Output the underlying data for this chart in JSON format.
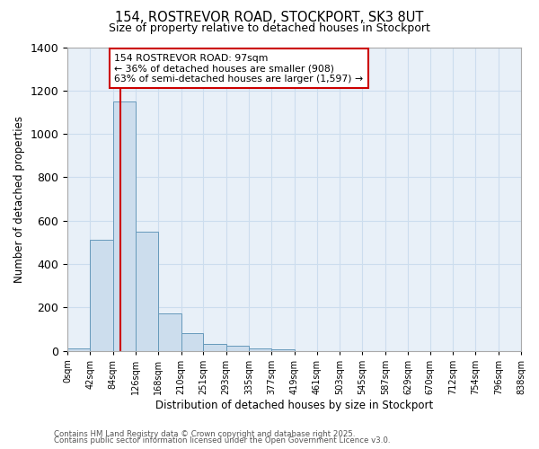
{
  "title_line1": "154, ROSTREVOR ROAD, STOCKPORT, SK3 8UT",
  "title_line2": "Size of property relative to detached houses in Stockport",
  "xlabel": "Distribution of detached houses by size in Stockport",
  "ylabel": "Number of detached properties",
  "bin_labels": [
    "0sqm",
    "42sqm",
    "84sqm",
    "126sqm",
    "168sqm",
    "210sqm",
    "251sqm",
    "293sqm",
    "335sqm",
    "377sqm",
    "419sqm",
    "461sqm",
    "503sqm",
    "545sqm",
    "587sqm",
    "629sqm",
    "670sqm",
    "712sqm",
    "754sqm",
    "796sqm",
    "838sqm"
  ],
  "bar_values": [
    10,
    510,
    1150,
    550,
    170,
    82,
    33,
    25,
    12,
    8,
    0,
    0,
    0,
    0,
    0,
    0,
    0,
    0,
    0,
    0
  ],
  "bar_color": "#ccdded",
  "bar_edge_color": "#6699bb",
  "vline_x": 97,
  "vline_color": "#cc0000",
  "annotation_text": "154 ROSTREVOR ROAD: 97sqm\n← 36% of detached houses are smaller (908)\n63% of semi-detached houses are larger (1,597) →",
  "annotation_box_color": "white",
  "annotation_box_edge_color": "#cc0000",
  "ylim": [
    0,
    1400
  ],
  "yticks": [
    0,
    200,
    400,
    600,
    800,
    1000,
    1200,
    1400
  ],
  "grid_color": "#ccddee",
  "background_color": "#ffffff",
  "plot_bg_color": "#e8f0f8",
  "footnote_line1": "Contains HM Land Registry data © Crown copyright and database right 2025.",
  "footnote_line2": "Contains public sector information licensed under the Open Government Licence v3.0.",
  "bin_edges": [
    0,
    42,
    84,
    126,
    168,
    210,
    251,
    293,
    335,
    377,
    419,
    461,
    503,
    545,
    587,
    629,
    670,
    712,
    754,
    796,
    838
  ]
}
